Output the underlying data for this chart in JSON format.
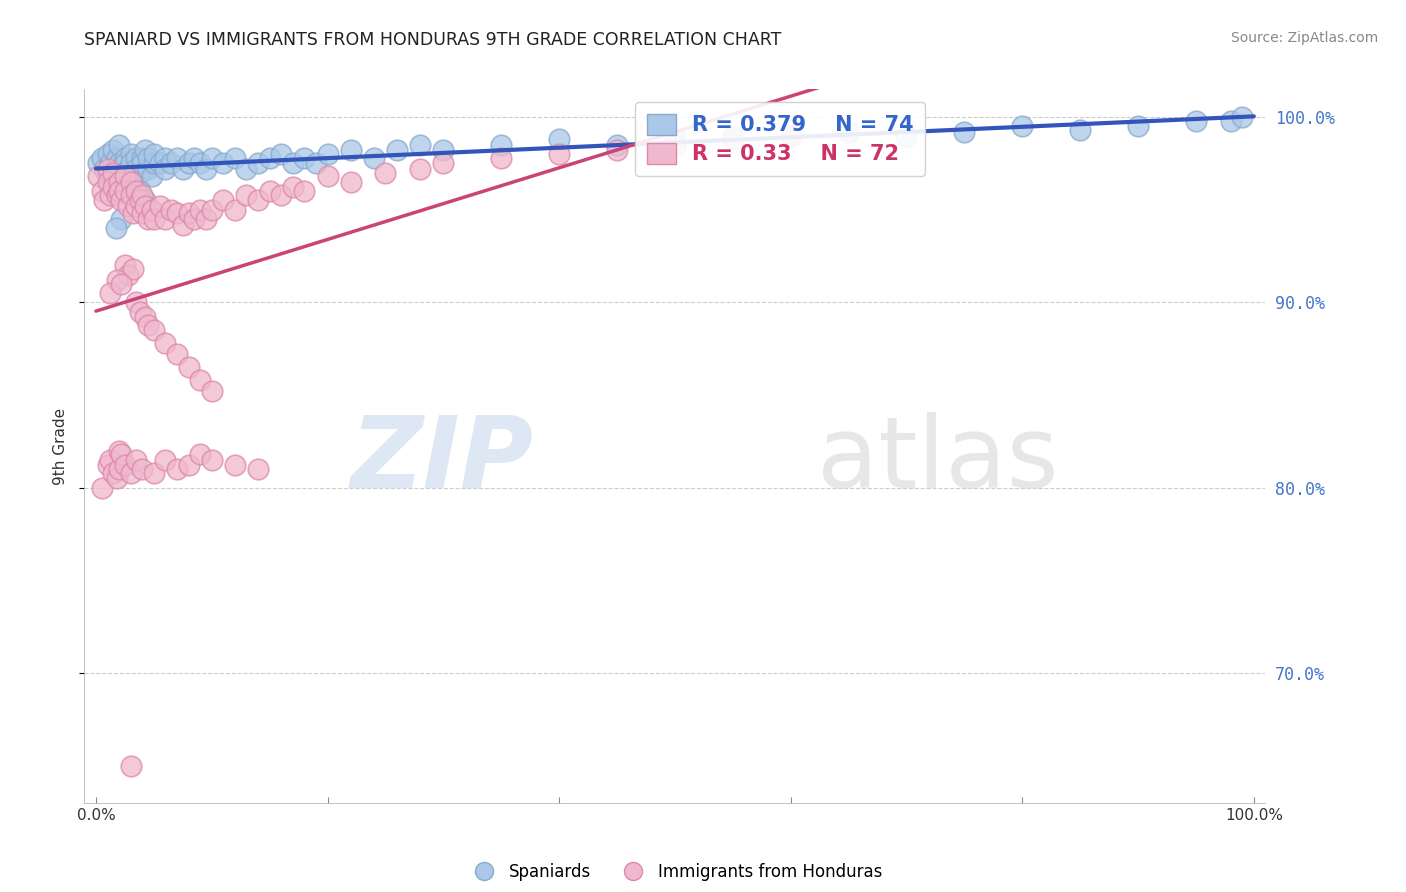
{
  "title": "SPANIARD VS IMMIGRANTS FROM HONDURAS 9TH GRADE CORRELATION CHART",
  "source_text": "Source: ZipAtlas.com",
  "ylabel": "9th Grade",
  "watermark": "ZIPatlas",
  "series": [
    {
      "name": "Spaniards",
      "marker_facecolor": "#aac8e8",
      "marker_edgecolor": "#88aacc",
      "R": 0.379,
      "N": 74,
      "line_color": "#3355bb",
      "legend_color": "#3366cc"
    },
    {
      "name": "Immigrants from Honduras",
      "marker_facecolor": "#f0b8cc",
      "marker_edgecolor": "#dd88aa",
      "R": 0.33,
      "N": 72,
      "line_color": "#cc4477",
      "legend_color": "#cc3366"
    }
  ],
  "xlim": [
    -0.01,
    1.01
  ],
  "ylim": [
    0.63,
    1.015
  ],
  "yticks": [
    0.7,
    0.8,
    0.9,
    1.0
  ],
  "ytick_labels": [
    "70.0%",
    "80.0%",
    "90.0%",
    "100.0%"
  ],
  "xticks": [
    0.0,
    0.2,
    0.4,
    0.6,
    0.8,
    1.0
  ],
  "xtick_labels": [
    "0.0%",
    "",
    "",
    "",
    "",
    "100.0%"
  ],
  "background_color": "#ffffff",
  "grid_color": "#cccccc",
  "spaniards_x": [
    0.002,
    0.005,
    0.007,
    0.01,
    0.01,
    0.012,
    0.015,
    0.015,
    0.018,
    0.02,
    0.02,
    0.022,
    0.025,
    0.025,
    0.028,
    0.03,
    0.03,
    0.032,
    0.035,
    0.035,
    0.038,
    0.04,
    0.04,
    0.042,
    0.045,
    0.045,
    0.048,
    0.05,
    0.05,
    0.055,
    0.06,
    0.06,
    0.065,
    0.07,
    0.075,
    0.08,
    0.085,
    0.09,
    0.095,
    0.1,
    0.11,
    0.12,
    0.13,
    0.14,
    0.15,
    0.16,
    0.17,
    0.18,
    0.19,
    0.2,
    0.22,
    0.24,
    0.26,
    0.28,
    0.3,
    0.35,
    0.4,
    0.45,
    0.5,
    0.55,
    0.6,
    0.65,
    0.7,
    0.75,
    0.8,
    0.85,
    0.9,
    0.95,
    0.98,
    0.99,
    0.038,
    0.042,
    0.022,
    0.017
  ],
  "spaniards_y": [
    0.975,
    0.978,
    0.972,
    0.98,
    0.968,
    0.975,
    0.982,
    0.97,
    0.978,
    0.975,
    0.985,
    0.968,
    0.978,
    0.975,
    0.972,
    0.98,
    0.975,
    0.968,
    0.978,
    0.972,
    0.97,
    0.978,
    0.975,
    0.982,
    0.972,
    0.978,
    0.968,
    0.975,
    0.98,
    0.975,
    0.978,
    0.972,
    0.975,
    0.978,
    0.972,
    0.975,
    0.978,
    0.975,
    0.972,
    0.978,
    0.975,
    0.978,
    0.972,
    0.975,
    0.978,
    0.98,
    0.975,
    0.978,
    0.975,
    0.98,
    0.982,
    0.978,
    0.982,
    0.985,
    0.982,
    0.985,
    0.988,
    0.985,
    0.988,
    0.99,
    0.99,
    0.992,
    0.99,
    0.992,
    0.995,
    0.993,
    0.995,
    0.998,
    0.998,
    1.0,
    0.96,
    0.955,
    0.945,
    0.94
  ],
  "honduras_x": [
    0.002,
    0.005,
    0.007,
    0.01,
    0.01,
    0.012,
    0.015,
    0.015,
    0.018,
    0.02,
    0.02,
    0.022,
    0.025,
    0.025,
    0.028,
    0.03,
    0.03,
    0.032,
    0.035,
    0.035,
    0.038,
    0.04,
    0.04,
    0.042,
    0.045,
    0.048,
    0.05,
    0.055,
    0.06,
    0.065,
    0.07,
    0.075,
    0.08,
    0.085,
    0.09,
    0.095,
    0.1,
    0.11,
    0.12,
    0.13,
    0.14,
    0.15,
    0.16,
    0.17,
    0.18,
    0.2,
    0.22,
    0.25,
    0.28,
    0.3,
    0.35,
    0.4,
    0.45,
    0.5,
    0.55,
    0.6,
    0.025,
    0.028,
    0.032,
    0.018,
    0.012,
    0.022,
    0.035,
    0.038,
    0.042,
    0.045,
    0.05,
    0.06,
    0.07,
    0.08,
    0.09,
    0.1
  ],
  "honduras_y": [
    0.968,
    0.96,
    0.955,
    0.972,
    0.965,
    0.958,
    0.97,
    0.962,
    0.958,
    0.965,
    0.96,
    0.955,
    0.968,
    0.96,
    0.952,
    0.965,
    0.958,
    0.948,
    0.96,
    0.952,
    0.955,
    0.948,
    0.958,
    0.952,
    0.945,
    0.95,
    0.945,
    0.952,
    0.945,
    0.95,
    0.948,
    0.942,
    0.948,
    0.945,
    0.95,
    0.945,
    0.95,
    0.955,
    0.95,
    0.958,
    0.955,
    0.96,
    0.958,
    0.962,
    0.96,
    0.968,
    0.965,
    0.97,
    0.972,
    0.975,
    0.978,
    0.98,
    0.982,
    0.985,
    0.988,
    0.99,
    0.92,
    0.915,
    0.918,
    0.912,
    0.905,
    0.91,
    0.9,
    0.895,
    0.892,
    0.888,
    0.885,
    0.878,
    0.872,
    0.865,
    0.858,
    0.852
  ],
  "honduras_low_x": [
    0.005,
    0.01,
    0.012,
    0.015,
    0.018,
    0.02,
    0.02,
    0.022,
    0.025,
    0.03,
    0.035,
    0.04,
    0.05,
    0.06,
    0.07,
    0.08,
    0.09,
    0.1,
    0.12,
    0.14,
    0.03
  ],
  "honduras_low_y": [
    0.8,
    0.812,
    0.815,
    0.808,
    0.805,
    0.82,
    0.81,
    0.818,
    0.812,
    0.808,
    0.815,
    0.81,
    0.808,
    0.815,
    0.81,
    0.812,
    0.818,
    0.815,
    0.812,
    0.81,
    0.65
  ]
}
